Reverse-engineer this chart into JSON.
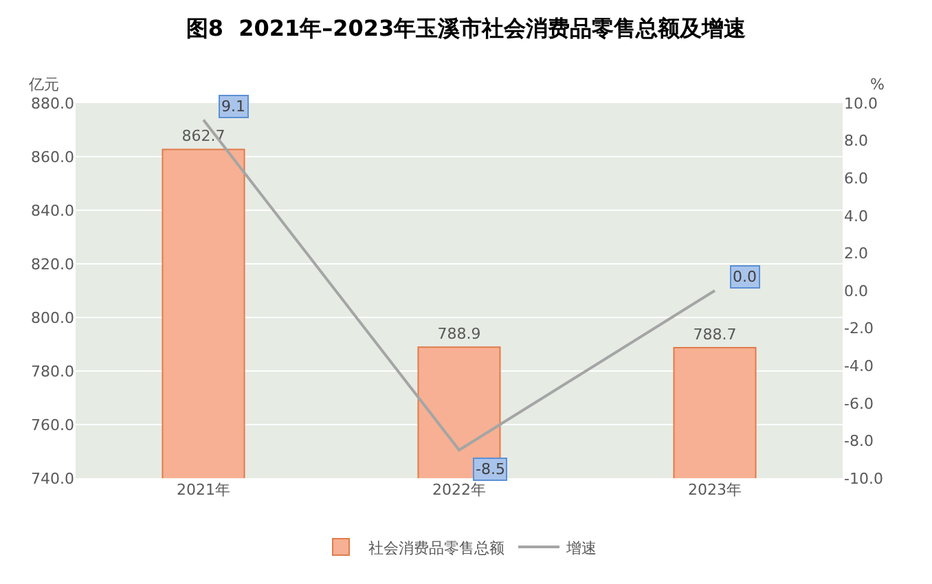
{
  "chart_data": {
    "type": "bar",
    "title": "图8  2021年–2023年玉溪市社会消费品零售总额及增速",
    "categories": [
      "2021年",
      "2022年",
      "2023年"
    ],
    "ylabel": "亿元",
    "y2label": "%",
    "series": [
      {
        "name": "社会消费品零售总额",
        "color": "#f7b093",
        "values": [
          862.7,
          788.9,
          788.7
        ],
        "value_labels": [
          "862.7",
          "788.9",
          "788.7"
        ]
      },
      {
        "name": "增速",
        "type": "line",
        "axis": "y2",
        "color": "#a5a5a5",
        "values": [
          9.1,
          -8.5,
          0.0
        ],
        "value_labels": [
          "9.1",
          "-8.5",
          "0.0"
        ],
        "marker": "none"
      }
    ],
    "ylim": [
      740,
      880
    ],
    "yticks": [
      {
        "value": 740,
        "label": "740.0"
      },
      {
        "value": 760,
        "label": "760.0"
      },
      {
        "value": 780,
        "label": "780.0"
      },
      {
        "value": 800,
        "label": "800.0"
      },
      {
        "value": 820,
        "label": "820.0"
      },
      {
        "value": 840,
        "label": "840.0"
      },
      {
        "value": 860,
        "label": "860.0"
      },
      {
        "value": 880,
        "label": "880.0"
      }
    ],
    "y2lim": [
      -10,
      10
    ],
    "y2ticks": [
      {
        "value": -10,
        "label": "-10.0"
      },
      {
        "value": -8,
        "label": "-8.0"
      },
      {
        "value": -6,
        "label": "-6.0"
      },
      {
        "value": -4,
        "label": "-4.0"
      },
      {
        "value": -2,
        "label": "-2.0"
      },
      {
        "value": 0,
        "label": "0.0"
      },
      {
        "value": 2,
        "label": "2.0"
      },
      {
        "value": 4,
        "label": "4.0"
      },
      {
        "value": 6,
        "label": "6.0"
      },
      {
        "value": 8,
        "label": "8.0"
      },
      {
        "value": 10,
        "label": "10.0"
      }
    ],
    "grid": "y",
    "legend": "bottom"
  }
}
